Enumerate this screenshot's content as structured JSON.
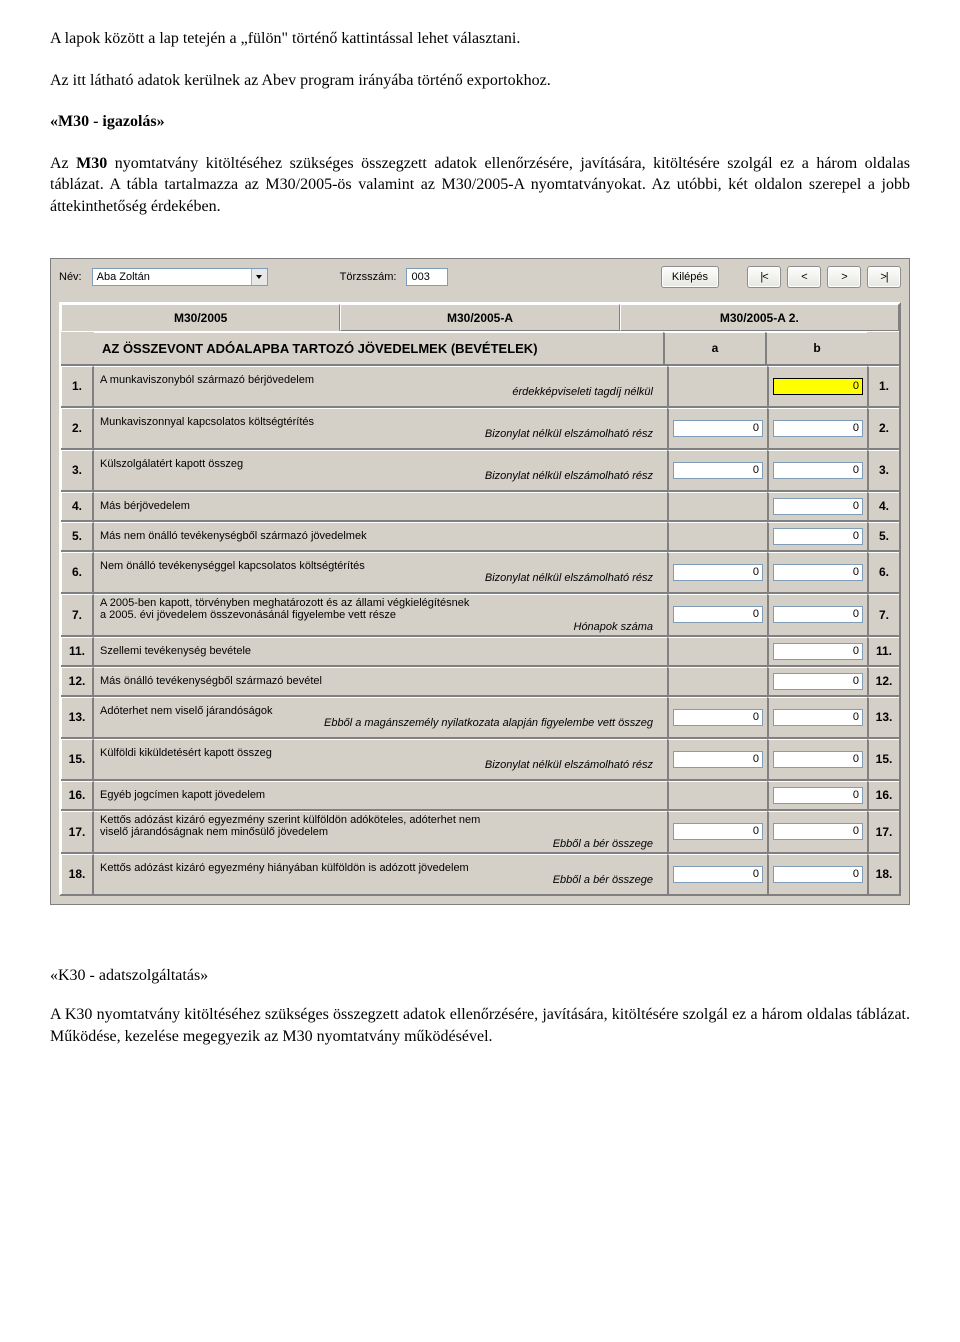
{
  "text": {
    "p1": "A lapok között a lap tetején a „fülön\" történő kattintással lehet választani.",
    "p2": "Az itt látható adatok kerülnek az Abev program irányába történő exportokhoz.",
    "h1": "«M30 - igazolás»",
    "p3a": "Az ",
    "p3b": "M30",
    "p3c": " nyomtatvány kitöltéséhez szükséges összegzett adatok ellenőrzésére, javítására, kitöltésére szolgál ez a három oldalas táblázat. A tábla tartalmazza az M30/2005-ös valamint az M30/2005-A nyomtatványokat. Az utóbbi, két oldalon szerepel a jobb áttekinthetőség érdekében.",
    "h2": "«K30 - adatszolgáltatás»",
    "p4a": "A ",
    "p4b": "K30",
    "p4c": " nyomtatvány kitöltéséhez szükséges összegzett adatok ellenőrzésére, javítására, kitöltésére szolgál ez a három oldalas táblázat. Működése, kezelése megegyezik az M30 nyomtatvány működésével."
  },
  "header": {
    "name_label": "Név:",
    "name_value": "Aba Zoltán",
    "torzs_label": "Törzsszám:",
    "torzs_value": "003",
    "exit_label": "Kilépés",
    "nav": [
      "|<",
      "<",
      ">",
      ">|"
    ]
  },
  "tabs": [
    "M30/2005",
    "M30/2005-A",
    "M30/2005-A   2."
  ],
  "active_tab": 0,
  "sheet_header": {
    "title": "AZ ÖSSZEVONT ADÓALAPBA TARTOZÓ JÖVEDELMEK (BEVÉTELEK)",
    "col_a": "a",
    "col_b": "b"
  },
  "rows": [
    {
      "num": "1.",
      "desc": "A munkaviszonyból származó bérjövedelem",
      "sub": "érdekképviseleti tagdíj nélkül",
      "a": null,
      "b": "0",
      "b_yellow": true,
      "tall": true
    },
    {
      "num": "2.",
      "desc": "Munkaviszonnyal kapcsolatos költségtérítés",
      "sub": "Bizonylat nélkül elszámolható rész",
      "a": "0",
      "b": "0",
      "tall": true
    },
    {
      "num": "3.",
      "desc": "Külszolgálatért kapott összeg",
      "sub": "Bizonylat nélkül elszámolható rész",
      "a": "0",
      "b": "0",
      "tall": true
    },
    {
      "num": "4.",
      "desc": "Más bérjövedelem",
      "a": null,
      "b": "0"
    },
    {
      "num": "5.",
      "desc": "Más nem önálló tevékenységből származó jövedelmek",
      "a": null,
      "b": "0"
    },
    {
      "num": "6.",
      "desc": "Nem önálló tevékenységgel kapcsolatos költségtérítés",
      "sub": "Bizonylat nélkül elszámolható rész",
      "a": "0",
      "b": "0",
      "tall": true
    },
    {
      "num": "7.",
      "desc": "A 2005-ben kapott, törvényben meghatározott és az állami végkielégítésnek",
      "desc2": "a 2005. évi jövedelem összevonásánál figyelembe vett része",
      "sub": "Hónapok száma",
      "a": "0",
      "b": "0",
      "tall": true
    },
    {
      "num": "11.",
      "desc": "Szellemi tevékenység bevétele",
      "a": null,
      "b": "0"
    },
    {
      "num": "12.",
      "desc": "Más önálló tevékenységből származó bevétel",
      "a": null,
      "b": "0"
    },
    {
      "num": "13.",
      "desc": "Adóterhet nem viselő járandóságok",
      "sub": "Ebből a magánszemély nyilatkozata alapján figyelembe vett összeg",
      "a": "0",
      "b": "0",
      "tall": true
    },
    {
      "num": "15.",
      "desc": "Külföldi kiküldetésért kapott összeg",
      "sub": "Bizonylat nélkül elszámolható rész",
      "a": "0",
      "b": "0",
      "tall": true
    },
    {
      "num": "16.",
      "desc": "Egyéb jogcímen kapott jövedelem",
      "a": null,
      "b": "0"
    },
    {
      "num": "17.",
      "desc": "Kettős adózást kizáró egyezmény szerint külföldön adóköteles, adóterhet nem",
      "desc2": "viselő járandóságnak nem minősülő jövedelem",
      "sub": "Ebből a bér összege",
      "a": "0",
      "b": "0",
      "tall": true
    },
    {
      "num": "18.",
      "desc": "Kettős adózást kizáró egyezmény hiányában külföldön is adózott jövedelem",
      "sub": "Ebből a bér összege",
      "a": "0",
      "b": "0",
      "tall": true
    }
  ]
}
